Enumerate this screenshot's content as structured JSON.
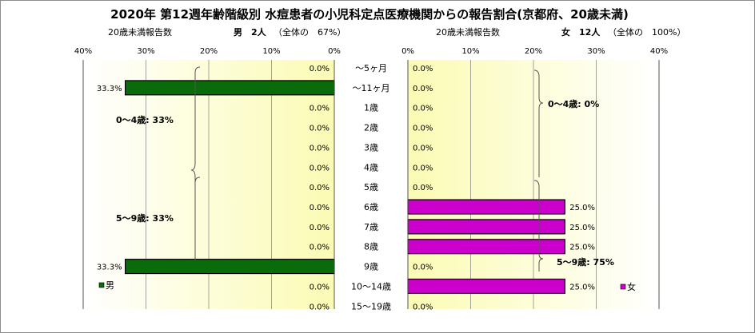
{
  "chart_data": {
    "type": "bar",
    "title": "2020年 第12週年齢階級別 水痘患者の小児科定点医療機関からの報告割合(京都府、20歳未満)",
    "categories": [
      "～5ヶ月",
      "～11ヶ月",
      "1歳",
      "2歳",
      "3歳",
      "4歳",
      "5歳",
      "6歳",
      "7歳",
      "8歳",
      "9歳",
      "10～14歳",
      "15～19歳"
    ],
    "left": {
      "caption": "20歳未満報告数",
      "header": "男　2人",
      "share": "（全体の　67%）",
      "legend": "男",
      "color": "#0a6b0a",
      "axis_ticks": [
        "40%",
        "30%",
        "20%",
        "10%",
        "0%"
      ],
      "xlim": [
        0,
        40
      ],
      "series": [
        {
          "name": "男",
          "values": [
            0,
            33.3,
            0,
            0,
            0,
            0,
            0,
            0,
            0,
            0,
            33.3,
            0,
            0
          ]
        }
      ],
      "value_labels": [
        "0.0%",
        "33.3%",
        "0.0%",
        "0.0%",
        "0.0%",
        "0.0%",
        "0.0%",
        "0.0%",
        "0.0%",
        "0.0%",
        "33.3%",
        "0.0%",
        "0.0%"
      ],
      "annotations": [
        "0～4歳: 33%",
        "5～9歳: 33%"
      ]
    },
    "right": {
      "caption": "20歳未満報告数",
      "header": "女　12人",
      "share": "（全体の　100%）",
      "legend": "女",
      "color": "#cc00cc",
      "axis_ticks": [
        "0%",
        "10%",
        "20%",
        "30%",
        "40%"
      ],
      "xlim": [
        0,
        40
      ],
      "series": [
        {
          "name": "女",
          "values": [
            0,
            0,
            0,
            0,
            0,
            0,
            0,
            25,
            25,
            25,
            0,
            25,
            0
          ]
        }
      ],
      "value_labels": [
        "0.0%",
        "0.0%",
        "0.0%",
        "0.0%",
        "0.0%",
        "0.0%",
        "0.0%",
        "25.0%",
        "25.0%",
        "25.0%",
        "0.0%",
        "25.0%",
        "0.0%"
      ],
      "annotations": [
        "0～4歳: 0%",
        "5～9歳: 75%"
      ]
    }
  }
}
